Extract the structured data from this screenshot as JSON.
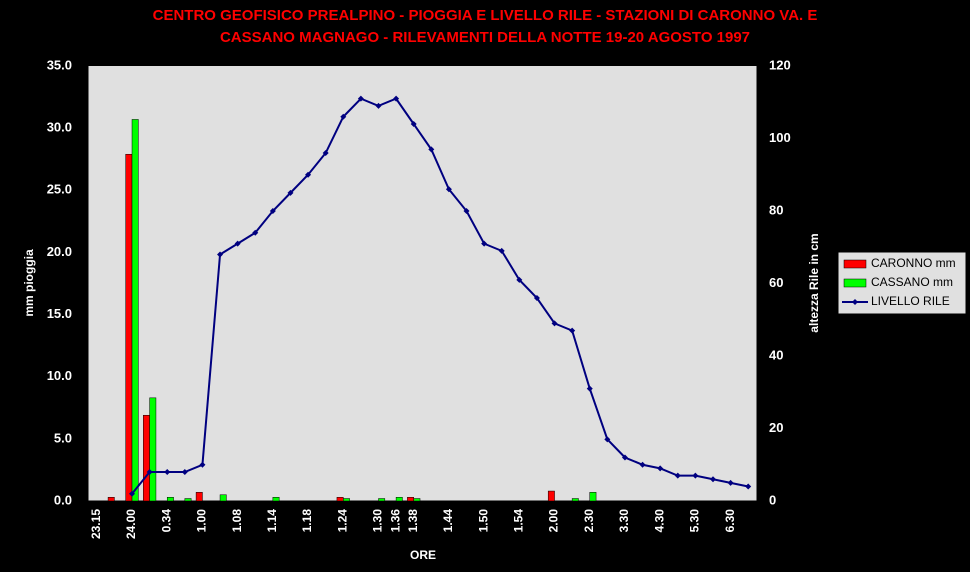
{
  "chart_data": {
    "type": "bar-line",
    "title": [
      "CENTRO GEOFISICO PREALPINO - PIOGGIA E LIVELLO RILE - STAZIONI DI CARONNO VA. E",
      "CASSANO MAGNAGO - RILEVAMENTI DELLA NOTTE 19-20 AGOSTO 1997"
    ],
    "x_label": "ORE",
    "y_label": "mm pioggia",
    "y2_label": "altezza Rile in cm",
    "categories": [
      "23.15",
      null,
      "24.00",
      null,
      "0.34",
      null,
      "1.00",
      null,
      "1.08",
      null,
      "1.14",
      null,
      "1.18",
      null,
      "1.24",
      null,
      "1.30",
      "1.36",
      "1.38",
      null,
      "1.44",
      null,
      "1.50",
      null,
      "1.54",
      null,
      "2.00",
      null,
      "2.30",
      null,
      "3.30",
      null,
      "4.30",
      null,
      "5.30",
      null,
      "6.30",
      null
    ],
    "series": [
      {
        "name": "CARONNO mm",
        "color": "#ff0000",
        "kind": "bar",
        "values": [
          0,
          0.3,
          27.9,
          6.9,
          0,
          0,
          0.7,
          0,
          0,
          0,
          0,
          0,
          0,
          0,
          0.3,
          0,
          0,
          0,
          0.3,
          0,
          0,
          0,
          0,
          0,
          0,
          0,
          0.8,
          0,
          0,
          0,
          0,
          0,
          0,
          0,
          0,
          0,
          0,
          0
        ]
      },
      {
        "name": "CASSANO mm",
        "color": "#00ff00",
        "kind": "bar",
        "values": [
          0,
          0,
          30.7,
          8.3,
          0.3,
          0.2,
          0,
          0.5,
          0,
          0,
          0.3,
          0,
          0,
          0,
          0.2,
          0,
          0.2,
          0.3,
          0.2,
          0,
          0,
          0,
          0,
          0,
          0,
          0,
          0,
          0.2,
          0.7,
          0,
          0,
          0,
          0,
          0,
          0,
          0,
          0,
          0
        ]
      },
      {
        "name": "LIVELLO RILE",
        "color": "#000080",
        "kind": "line",
        "axis": "y2",
        "values": [
          null,
          null,
          2,
          8,
          8,
          8,
          10,
          68,
          71,
          74,
          80,
          85,
          90,
          96,
          106,
          111,
          109,
          111,
          104,
          97,
          86,
          80,
          71,
          69,
          61,
          56,
          49,
          47,
          31,
          17,
          12,
          10,
          9,
          7,
          7,
          6,
          5,
          4
        ]
      }
    ],
    "ylim": [
      0,
      35
    ],
    "yticks": [
      {
        "value": 0,
        "label": "0.0"
      },
      {
        "value": 5,
        "label": "5.0"
      },
      {
        "value": 10,
        "label": "10.0"
      },
      {
        "value": 15,
        "label": "15.0"
      },
      {
        "value": 20,
        "label": "20.0"
      },
      {
        "value": 25,
        "label": "25.0"
      },
      {
        "value": 30,
        "label": "30.0"
      },
      {
        "value": 35,
        "label": "35.0"
      }
    ],
    "y2lim": [
      0,
      120
    ],
    "y2ticks": [
      0,
      20,
      40,
      60,
      80,
      100,
      120
    ],
    "legend": "right"
  }
}
